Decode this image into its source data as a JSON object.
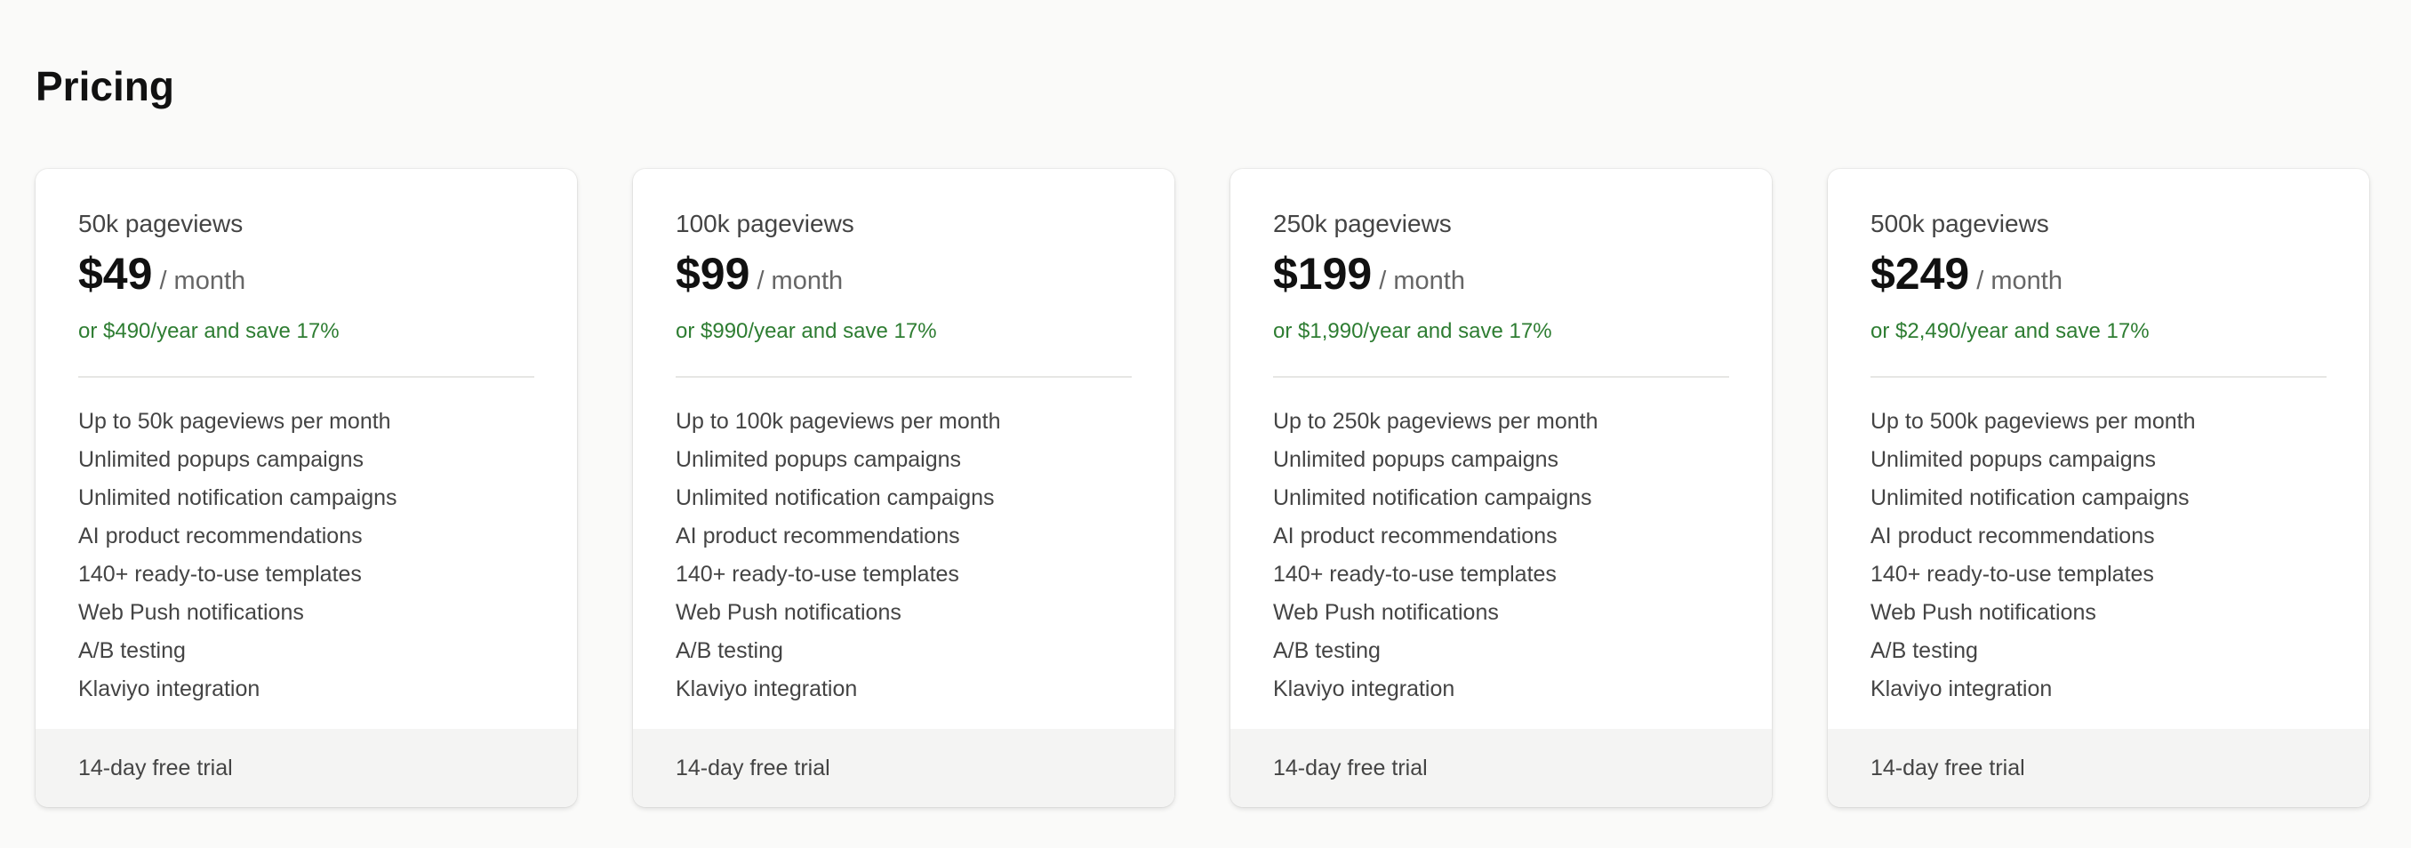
{
  "page": {
    "title": "Pricing"
  },
  "colors": {
    "accent_green": "#2e7d32",
    "background": "#fafaf9",
    "footer_bg": "#f4f4f3"
  },
  "plans": [
    {
      "name": "50k pageviews",
      "price": "$49",
      "period": "/ month",
      "yearly": "or $490/year and save 17%",
      "features": [
        "Up to 50k pageviews per month",
        "Unlimited popups campaigns",
        "Unlimited notification campaigns",
        "AI product recommendations",
        "140+ ready-to-use templates",
        "Web Push notifications",
        "A/B testing",
        "Klaviyo integration"
      ],
      "trial": "14-day free trial"
    },
    {
      "name": "100k pageviews",
      "price": "$99",
      "period": "/ month",
      "yearly": "or $990/year and save 17%",
      "features": [
        "Up to 100k pageviews per month",
        "Unlimited popups campaigns",
        "Unlimited notification campaigns",
        "AI product recommendations",
        "140+ ready-to-use templates",
        "Web Push notifications",
        "A/B testing",
        "Klaviyo integration"
      ],
      "trial": "14-day free trial"
    },
    {
      "name": "250k pageviews",
      "price": "$199",
      "period": "/ month",
      "yearly": "or $1,990/year and save 17%",
      "features": [
        "Up to 250k pageviews per month",
        "Unlimited popups campaigns",
        "Unlimited notification campaigns",
        "AI product recommendations",
        "140+ ready-to-use templates",
        "Web Push notifications",
        "A/B testing",
        "Klaviyo integration"
      ],
      "trial": "14-day free trial"
    },
    {
      "name": "500k pageviews",
      "price": "$249",
      "period": "/ month",
      "yearly": "or $2,490/year and save 17%",
      "features": [
        "Up to 500k pageviews per month",
        "Unlimited popups campaigns",
        "Unlimited notification campaigns",
        "AI product recommendations",
        "140+ ready-to-use templates",
        "Web Push notifications",
        "A/B testing",
        "Klaviyo integration"
      ],
      "trial": "14-day free trial"
    }
  ]
}
